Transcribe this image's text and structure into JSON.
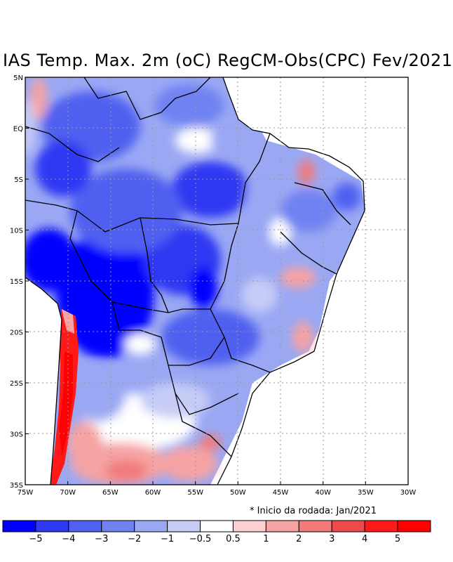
{
  "title": "IAS Temp. Max. 2m (oC) RegCM-Obs(CPC) Fev/2021",
  "note": "* Inicio da rodada: Jan/2021",
  "chart_data": {
    "type": "heatmap",
    "variable": "Temp. Max. 2m (oC)",
    "lon_ticks": [
      "75W",
      "70W",
      "65W",
      "60W",
      "55W",
      "50W",
      "45W",
      "40W",
      "35W",
      "30W"
    ],
    "lat_ticks": [
      "5N",
      "EQ",
      "5S",
      "10S",
      "15S",
      "20S",
      "25S",
      "30S",
      "35S"
    ],
    "lon_range": [
      -75,
      -30
    ],
    "lat_range": [
      -35,
      5
    ],
    "grid": true,
    "colorbar": {
      "labels": [
        "-5",
        "-4",
        "-3",
        "-2",
        "-1",
        "-0.5",
        "0.5",
        "1",
        "2",
        "3",
        "4",
        "5"
      ],
      "colors": [
        "#0000ff",
        "#2f38f2",
        "#5060f0",
        "#7082f2",
        "#9aa8f4",
        "#c6ccf6",
        "#ffffff",
        "#fcd0d0",
        "#f6a3a3",
        "#f27a7a",
        "#ef4a4a",
        "#ff1a1a",
        "#ff0000"
      ]
    },
    "features": [
      {
        "region": "Central-West Brazil / Bolivia / Paraguay",
        "anomaly": "strong negative (-3 to -5)"
      },
      {
        "region": "Amazon",
        "anomaly": "negative (-1 to -3)"
      },
      {
        "region": "Southern Brazil / Uruguay / Argentina",
        "anomaly": "positive (1 to 4)"
      },
      {
        "region": "Chilean coast / Andes",
        "anomaly": "strong positive (3 to 5)"
      },
      {
        "region": "Northeast Brazil",
        "anomaly": "mixed (-2 to 2)"
      }
    ]
  }
}
